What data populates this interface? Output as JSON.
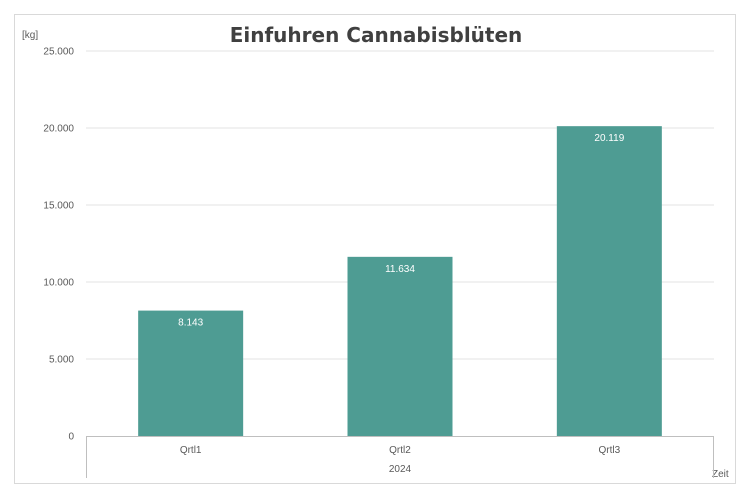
{
  "chart_data": {
    "type": "bar",
    "title": "Einfuhren Cannabisblüten",
    "ylabel": "[kg]",
    "xlabel": "Zeit",
    "group_label": "2024",
    "categories": [
      "Qrtl1",
      "Qrtl2",
      "Qrtl3"
    ],
    "values": [
      8143,
      11634,
      20119
    ],
    "data_labels": [
      "8.143",
      "11.634",
      "20.119"
    ],
    "ylim": [
      0,
      25000
    ],
    "yticks": [
      0,
      5000,
      10000,
      15000,
      20000,
      25000
    ],
    "ytick_labels": [
      "0",
      "5.000",
      "10.000",
      "15.000",
      "20.000",
      "25.000"
    ],
    "grid": true,
    "legend": "none",
    "bar_color": "#4e9c93"
  }
}
